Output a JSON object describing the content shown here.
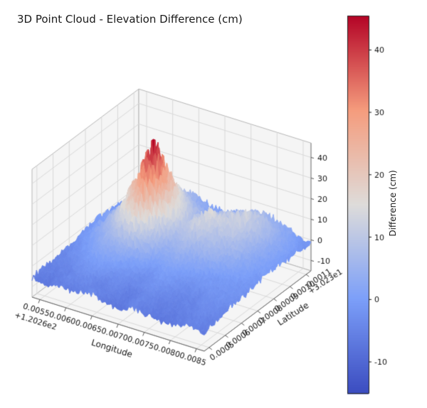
{
  "chart_data": {
    "type": "surface",
    "title": "3D Point Cloud - Elevation Difference (cm)",
    "axes": {
      "x": {
        "label": "Longitude",
        "offset_text": "+1.2026e2",
        "ticks": [
          0.0055,
          0.006,
          0.0065,
          0.007,
          0.0075,
          0.008,
          0.0085
        ],
        "tick_labels": [
          "0.0055",
          "0.0060",
          "0.0065",
          "0.0070",
          "0.0075",
          "0.0080",
          "0.0085"
        ],
        "range": [
          0.00535,
          0.00865
        ]
      },
      "y": {
        "label": "Latitude",
        "offset_text": "+3.023e1",
        "ticks": [
          0.0005,
          0.0006,
          0.0007,
          0.0008,
          0.0009,
          0.001,
          0.0011
        ],
        "tick_labels": [
          "0.0005",
          "0.0006",
          "0.0007",
          "0.0008",
          "0.0009",
          "0.0010",
          "0.0011"
        ],
        "range": [
          0.00047,
          0.00113
        ]
      },
      "z": {
        "label": "",
        "ticks": [
          -10,
          0,
          10,
          20,
          30,
          40
        ],
        "tick_labels": [
          "-10",
          "0",
          "10",
          "20",
          "30",
          "40"
        ],
        "range": [
          -15,
          47
        ]
      }
    },
    "colorbar": {
      "label": "Difference (cm)",
      "vmin": -15,
      "vmax": 45.5,
      "ticks": [
        -10,
        0,
        10,
        20,
        30,
        40
      ],
      "tick_labels": [
        "-10",
        "0",
        "10",
        "20",
        "30",
        "40"
      ]
    },
    "colormap": {
      "name": "coolwarm",
      "anchors": [
        "#3b4cc0",
        "#7c9ff9",
        "#dedcda",
        "#f59c7d",
        "#b40426"
      ]
    },
    "surface_grid": {
      "units": "cm",
      "lon_range": [
        0.00535,
        0.00865
      ],
      "lat_range": [
        0.00047,
        0.00113
      ],
      "z": [
        [
          -6,
          -7,
          -5,
          -6,
          -4,
          -6,
          -7,
          -5,
          -6,
          -7,
          -6,
          -5,
          -6
        ],
        [
          -5,
          -6,
          -4,
          -3,
          -5,
          -4,
          -6,
          -4,
          -5,
          -6,
          -5,
          -4,
          -5
        ],
        [
          -5,
          -4,
          -2,
          0,
          -2,
          -3,
          -4,
          -2,
          -4,
          -5,
          -4,
          -3,
          -4
        ],
        [
          -4,
          -2,
          1,
          3,
          2,
          0,
          -2,
          0,
          -2,
          -3,
          -2,
          -2,
          -3
        ],
        [
          -3,
          0,
          4,
          9,
          12,
          7,
          2,
          3,
          1,
          0,
          -1,
          -1,
          -2
        ],
        [
          -2,
          2,
          9,
          18,
          28,
          14,
          6,
          7,
          5,
          4,
          2,
          0,
          -1
        ],
        [
          -1,
          3,
          12,
          26,
          46,
          20,
          10,
          12,
          9,
          8,
          5,
          1,
          0
        ],
        [
          -1,
          2,
          8,
          17,
          30,
          15,
          8,
          14,
          12,
          11,
          7,
          2,
          0
        ],
        [
          -2,
          0,
          5,
          10,
          16,
          9,
          5,
          9,
          10,
          13,
          8,
          3,
          -1
        ],
        [
          -2,
          -1,
          2,
          5,
          8,
          4,
          2,
          5,
          7,
          9,
          6,
          2,
          -1
        ],
        [
          -3,
          -2,
          0,
          2,
          4,
          1,
          0,
          2,
          4,
          5,
          3,
          0,
          -2
        ]
      ]
    }
  }
}
